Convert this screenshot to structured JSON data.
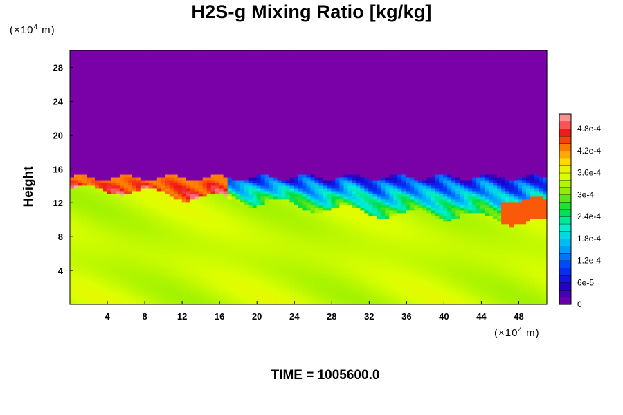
{
  "chart_data": {
    "type": "heatmap",
    "title": "H2S-g Mixing Ratio [kg/kg]",
    "ylabel": "Height",
    "xlabel": "",
    "x_unit": {
      "prefix": "(×10",
      "exp": "4",
      "suffix": " m)"
    },
    "y_unit": {
      "prefix": "(×10",
      "exp": "4",
      "suffix": " m)"
    },
    "xlim": [
      0,
      51
    ],
    "ylim": [
      0,
      30
    ],
    "x_ticks": [
      4,
      8,
      12,
      16,
      20,
      24,
      28,
      32,
      36,
      40,
      44,
      48
    ],
    "y_ticks": [
      4,
      8,
      12,
      16,
      20,
      24,
      28
    ],
    "x_tick_labels": [
      "4",
      "8",
      "12",
      "16",
      "20",
      "24",
      "28",
      "32",
      "36",
      "40",
      "44",
      "48"
    ],
    "y_tick_labels": [
      "4",
      "8",
      "12",
      "16",
      "20",
      "24",
      "28"
    ],
    "colorbar": {
      "min": 0,
      "max": 0.00052,
      "labels": [
        "0",
        "6e-5",
        "1.2e-4",
        "1.8e-4",
        "2.4e-4",
        "3e-4",
        "3.6e-4",
        "4.2e-4",
        "4.8e-4"
      ],
      "label_values": [
        0,
        6e-05,
        0.00012,
        0.00018,
        0.00024,
        0.0003,
        0.00036,
        0.00042,
        0.00048
      ]
    },
    "field_description": {
      "upper_value": 0,
      "lower_value": 0.00034,
      "interface_height_approx": [
        15,
        15,
        14.5,
        14,
        13.5,
        13,
        12.5,
        12,
        12,
        11.5,
        11
      ]
    },
    "time_label": "TIME = 1005600.0"
  }
}
